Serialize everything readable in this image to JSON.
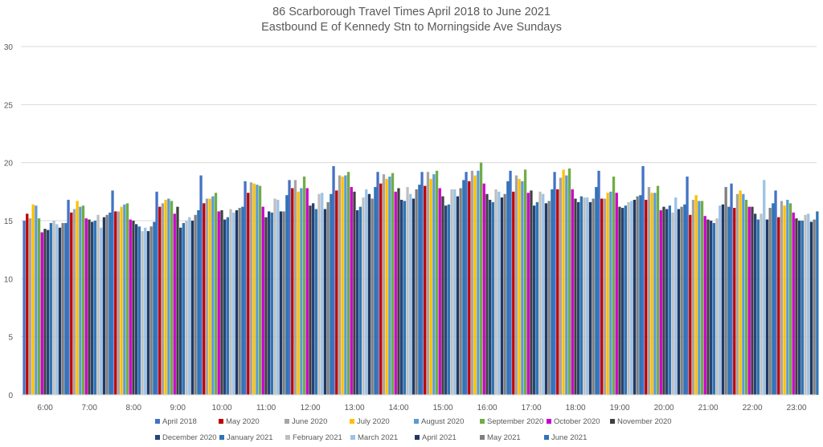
{
  "chart_data": {
    "type": "bar",
    "title_line1": "86 Scarborough Travel Times April 2018 to June 2021",
    "title_line2": "Eastbound E of Kennedy Stn to Morningside Ave Sundays",
    "xlabel": "",
    "ylabel": "",
    "ylim": [
      0,
      30
    ],
    "yticks": [
      0,
      5,
      10,
      15,
      20,
      25,
      30
    ],
    "grid": true,
    "legend_position": "bottom",
    "categories": [
      "6:00",
      "7:00",
      "8:00",
      "9:00",
      "10:00",
      "11:00",
      "12:00",
      "13:00",
      "14:00",
      "15:00",
      "16:00",
      "17:00",
      "18:00",
      "19:00",
      "20:00",
      "21:00",
      "22:00",
      "23:00"
    ],
    "series": [
      {
        "name": "April 2018",
        "color": "#4472C4",
        "values": [
          15.0,
          16.8,
          17.6,
          17.5,
          18.9,
          18.4,
          18.5,
          19.7,
          19.2,
          19.2,
          19.2,
          19.3,
          19.2,
          19.3,
          19.7,
          18.8,
          18.2,
          17.6
        ]
      },
      {
        "name": "May 2020",
        "color": "#C00000",
        "values": [
          15.6,
          15.7,
          15.8,
          16.2,
          16.5,
          17.4,
          17.8,
          17.6,
          18.2,
          18.0,
          18.4,
          17.5,
          17.7,
          16.9,
          16.8,
          15.5,
          16.1,
          15.3
        ]
      },
      {
        "name": "June 2020",
        "color": "#A5A5A5",
        "values": [
          15.2,
          16.0,
          15.8,
          16.5,
          16.9,
          18.3,
          18.5,
          18.9,
          19.0,
          19.2,
          19.3,
          18.9,
          18.7,
          16.9,
          17.9,
          16.8,
          17.3,
          16.7
        ]
      },
      {
        "name": "July 2020",
        "color": "#FFC000",
        "values": [
          16.4,
          16.7,
          16.2,
          16.8,
          16.9,
          18.2,
          17.5,
          18.8,
          18.6,
          18.6,
          18.9,
          18.6,
          19.4,
          17.4,
          17.4,
          17.2,
          17.6,
          16.3
        ]
      },
      {
        "name": "August 2020",
        "color": "#5B9BD5",
        "values": [
          16.3,
          16.2,
          16.4,
          16.9,
          17.1,
          18.1,
          17.8,
          18.9,
          18.8,
          19.0,
          19.3,
          18.4,
          18.9,
          17.5,
          17.4,
          16.7,
          17.3,
          16.8
        ]
      },
      {
        "name": "September 2020",
        "color": "#70AD47",
        "values": [
          15.2,
          16.3,
          16.5,
          16.7,
          17.4,
          18.0,
          18.8,
          19.2,
          19.1,
          19.3,
          20.0,
          19.4,
          19.5,
          18.8,
          18.0,
          16.7,
          16.8,
          16.5
        ]
      },
      {
        "name": "October 2020",
        "color": "#CC00CC",
        "values": [
          14.0,
          15.2,
          15.1,
          15.6,
          15.8,
          16.2,
          17.8,
          17.9,
          17.5,
          17.8,
          18.2,
          17.4,
          17.7,
          17.4,
          15.9,
          15.4,
          16.2,
          15.7
        ]
      },
      {
        "name": "November 2020",
        "color": "#404040",
        "values": [
          14.3,
          15.1,
          15.0,
          16.2,
          15.9,
          15.3,
          16.3,
          17.5,
          17.8,
          17.1,
          17.3,
          17.6,
          16.9,
          16.2,
          16.2,
          15.1,
          16.2,
          15.2
        ]
      },
      {
        "name": "December 2020",
        "color": "#264478",
        "values": [
          14.2,
          14.9,
          14.7,
          14.4,
          15.1,
          15.8,
          16.5,
          15.9,
          16.8,
          16.3,
          16.8,
          16.3,
          16.6,
          16.1,
          16.0,
          15.0,
          15.6,
          15.0
        ]
      },
      {
        "name": "January 2021",
        "color": "#2E75B6",
        "values": [
          14.8,
          15.0,
          14.5,
          14.8,
          15.3,
          15.7,
          16.0,
          16.2,
          16.7,
          16.4,
          16.6,
          16.6,
          17.1,
          16.3,
          16.3,
          14.8,
          15.1,
          15.0
        ]
      },
      {
        "name": "February 2021",
        "color": "#BFBFBF",
        "values": [
          15.0,
          15.5,
          14.1,
          15.0,
          16.0,
          16.9,
          17.3,
          17.0,
          17.9,
          17.7,
          17.7,
          17.5,
          17.0,
          16.6,
          15.7,
          15.2,
          15.6,
          15.5
        ]
      },
      {
        "name": "March 2021",
        "color": "#9DC3E6",
        "values": [
          14.7,
          14.4,
          14.4,
          15.3,
          15.7,
          16.8,
          17.4,
          17.7,
          17.3,
          17.7,
          17.5,
          17.3,
          17.0,
          16.7,
          17.0,
          16.3,
          18.5,
          15.6
        ]
      },
      {
        "name": "April 2021",
        "color": "#203864",
        "values": [
          14.4,
          15.3,
          14.1,
          15.0,
          15.9,
          15.8,
          16.0,
          17.3,
          16.9,
          17.1,
          17.0,
          16.5,
          16.6,
          16.8,
          16.0,
          16.4,
          15.1,
          14.9
        ]
      },
      {
        "name": "May 2021",
        "color": "#7F7F7F",
        "values": [
          14.8,
          15.5,
          14.5,
          15.5,
          16.1,
          15.8,
          16.6,
          16.9,
          17.7,
          17.8,
          17.3,
          16.7,
          16.9,
          17.1,
          16.2,
          17.9,
          16.1,
          15.1
        ]
      },
      {
        "name": "June 2021",
        "color": "#2F74B5",
        "values": [
          14.8,
          15.7,
          14.9,
          15.9,
          16.2,
          17.2,
          17.3,
          17.9,
          18.1,
          18.5,
          18.4,
          17.7,
          17.9,
          17.2,
          16.4,
          16.2,
          16.5,
          15.8
        ]
      }
    ]
  }
}
